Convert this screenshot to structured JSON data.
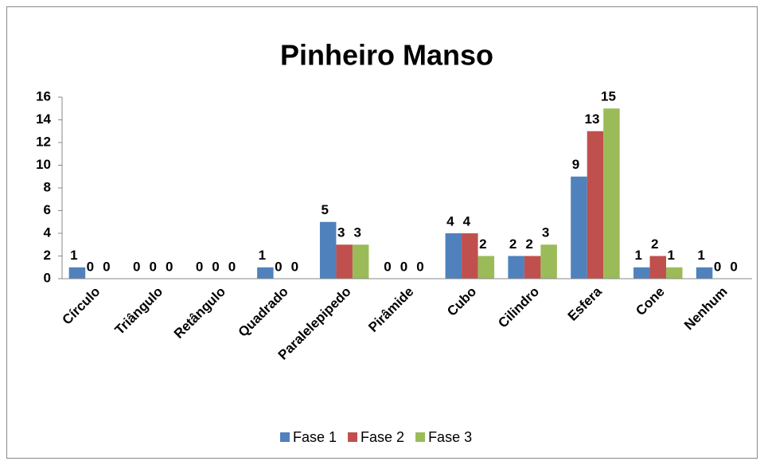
{
  "chart_data": {
    "type": "bar",
    "title": "Pinheiro Manso",
    "categories": [
      "Círculo",
      "Triângulo",
      "Retângulo",
      "Quadrado",
      "Paralelepipedo",
      "Pirâmide",
      "Cubo",
      "Cilindro",
      "Esfera",
      "Cone",
      "Nenhum"
    ],
    "series": [
      {
        "name": "Fase 1",
        "color": "#4f81bd",
        "values": [
          1,
          0,
          0,
          1,
          5,
          0,
          4,
          2,
          9,
          1,
          1
        ]
      },
      {
        "name": "Fase 2",
        "color": "#c0504d",
        "values": [
          0,
          0,
          0,
          0,
          3,
          0,
          4,
          2,
          13,
          2,
          0
        ]
      },
      {
        "name": "Fase 3",
        "color": "#9bbb59",
        "values": [
          0,
          0,
          0,
          0,
          3,
          0,
          2,
          3,
          15,
          1,
          0
        ]
      }
    ],
    "ylim": [
      0,
      16
    ],
    "yticks": [
      0,
      2,
      4,
      6,
      8,
      10,
      12,
      14,
      16
    ],
    "grid": false,
    "legend": "bottom",
    "data_labels": true
  }
}
